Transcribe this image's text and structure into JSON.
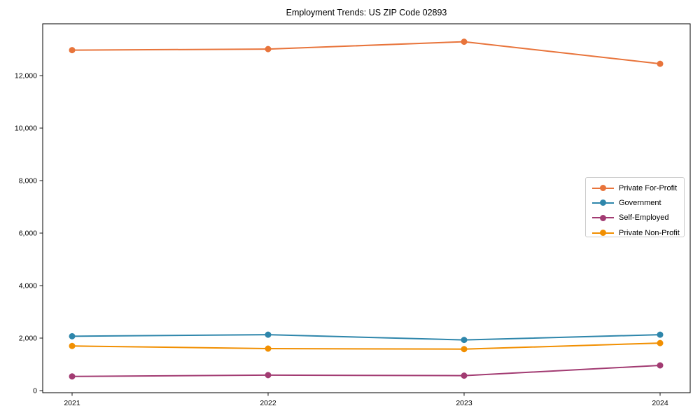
{
  "title": "Employment Trends: US ZIP Code 02893",
  "chart_data": {
    "type": "line",
    "title": "Employment Trends: US ZIP Code 02893",
    "xlabel": "",
    "ylabel": "",
    "grid": false,
    "legend_position": "center right",
    "marker": "circle",
    "categories": [
      "2021",
      "2022",
      "2023",
      "2024"
    ],
    "y_ticks": [
      0,
      2000,
      4000,
      6000,
      8000,
      10000,
      12000
    ],
    "ylim": [
      0,
      14000
    ],
    "series": [
      {
        "name": "Private For-Profit",
        "color": "#E8743B",
        "values": [
          12970,
          13010,
          13290,
          12450
        ]
      },
      {
        "name": "Government",
        "color": "#2E86AB",
        "values": [
          2070,
          2130,
          1930,
          2130
        ]
      },
      {
        "name": "Self-Employed",
        "color": "#A23B72",
        "values": [
          540,
          590,
          570,
          960
        ]
      },
      {
        "name": "Private Non-Profit",
        "color": "#F18F01",
        "values": [
          1700,
          1600,
          1580,
          1810
        ]
      }
    ]
  }
}
